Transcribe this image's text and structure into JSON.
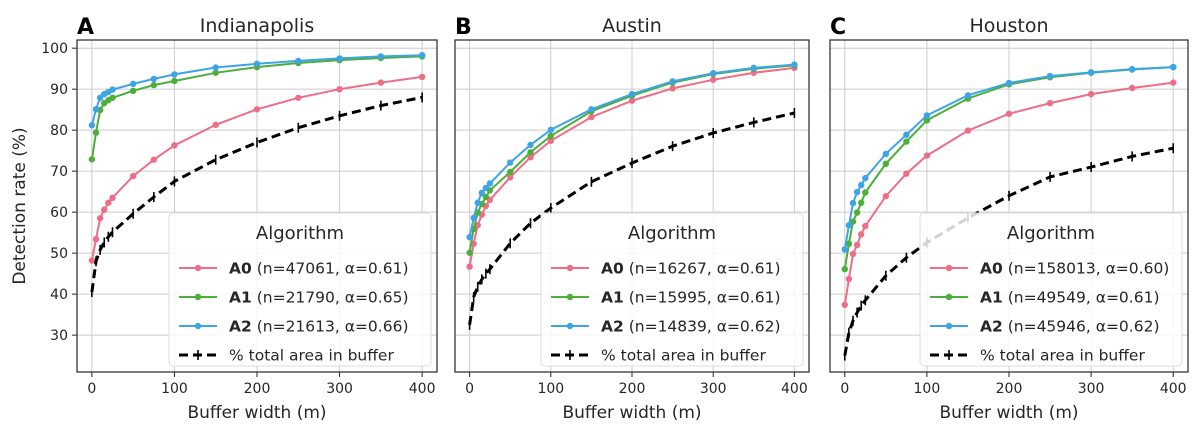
{
  "chart_data": {
    "type": "line",
    "ylabel": "Detection rate (%)",
    "xlabel": "Buffer width (m)",
    "xlim": [
      -18,
      418
    ],
    "ylim": [
      21,
      102
    ],
    "xticks": [
      0,
      100,
      200,
      300,
      400
    ],
    "yticks": [
      30,
      40,
      50,
      60,
      70,
      80,
      90,
      100
    ],
    "grid": true,
    "legend_title": "Algorithm",
    "legend_position": "lower-right",
    "colors": {
      "A0": "#ee6d87",
      "A1": "#4caf3a",
      "A2": "#3da5e6",
      "area": "#000000"
    },
    "x": [
      0,
      5,
      10,
      15,
      20,
      25,
      50,
      75,
      100,
      150,
      200,
      250,
      300,
      350,
      400
    ],
    "panels": [
      {
        "letter": "A",
        "title": "Indianapolis",
        "series": [
          {
            "key": "A0",
            "name": "A0",
            "label_rest": " (n=47061, α=0.61)",
            "values": [
              48.2,
              53.4,
              58.5,
              60.6,
              62.3,
              63.5,
              68.8,
              72.8,
              76.3,
              81.3,
              85.1,
              87.9,
              90.0,
              91.6,
              93.0
            ]
          },
          {
            "key": "A1",
            "name": "A1",
            "label_rest": " (n=21790, α=0.65)",
            "values": [
              72.9,
              79.4,
              84.9,
              86.6,
              87.3,
              87.9,
              89.6,
              91.0,
              92.0,
              94.0,
              95.4,
              96.4,
              97.1,
              97.6,
              98.0
            ]
          },
          {
            "key": "A2",
            "name": "A2",
            "label_rest": " (n=21613, α=0.66)",
            "values": [
              81.2,
              85.1,
              87.9,
              88.8,
              89.3,
              89.9,
              91.3,
              92.5,
              93.6,
              95.3,
              96.2,
              96.9,
              97.5,
              98.0,
              98.3
            ]
          },
          {
            "key": "area",
            "name": "% total area in buffer",
            "label_rest": "",
            "values": [
              40.5,
              48.0,
              50.8,
              52.6,
              54.0,
              55.1,
              59.6,
              63.7,
              67.5,
              72.8,
              77.0,
              80.6,
              83.5,
              86.0,
              88.0
            ]
          }
        ]
      },
      {
        "letter": "B",
        "title": "Austin",
        "series": [
          {
            "key": "A0",
            "name": "A0",
            "label_rest": " (n=16267, α=0.61)",
            "values": [
              46.7,
              52.3,
              56.8,
              59.4,
              61.5,
              63.0,
              68.5,
              73.4,
              77.4,
              83.2,
              87.2,
              90.2,
              92.3,
              94.0,
              95.2
            ]
          },
          {
            "key": "A1",
            "name": "A1",
            "label_rest": " (n=15995, α=0.61)",
            "values": [
              50.1,
              55.9,
              59.9,
              62.0,
              63.7,
              65.3,
              69.8,
              74.6,
              78.6,
              84.6,
              88.4,
              91.6,
              93.7,
              95.0,
              95.8
            ]
          },
          {
            "key": "A2",
            "name": "A2",
            "label_rest": " (n=14839, α=0.62)",
            "values": [
              53.9,
              58.6,
              62.3,
              64.7,
              65.9,
              67.0,
              72.1,
              76.4,
              80.1,
              85.1,
              88.8,
              91.9,
              93.9,
              95.2,
              96.0
            ]
          },
          {
            "key": "area",
            "name": "% total area in buffer",
            "label_rest": "",
            "values": [
              32.5,
              39.3,
              41.8,
              43.6,
              45.0,
              46.1,
              52.4,
              57.3,
              61.0,
              67.4,
              72.0,
              76.1,
              79.3,
              81.9,
              84.2
            ]
          }
        ]
      },
      {
        "letter": "C",
        "title": "Houston",
        "series": [
          {
            "key": "A0",
            "name": "A0",
            "label_rest": " (n=158013, α=0.60)",
            "values": [
              37.4,
              43.7,
              49.8,
              52.0,
              54.6,
              56.6,
              63.9,
              69.4,
              73.8,
              79.9,
              84.0,
              86.6,
              88.8,
              90.3,
              91.6
            ]
          },
          {
            "key": "A1",
            "name": "A1",
            "label_rest": " (n=49549, α=0.61)",
            "values": [
              46.1,
              52.3,
              57.7,
              59.9,
              62.3,
              64.8,
              71.8,
              77.2,
              82.4,
              87.7,
              91.2,
              92.9,
              94.0,
              94.8,
              95.4
            ]
          },
          {
            "key": "A2",
            "name": "A2",
            "label_rest": " (n=45946, α=0.62)",
            "values": [
              50.9,
              56.8,
              62.2,
              64.9,
              66.6,
              68.3,
              74.2,
              78.9,
              83.6,
              88.5,
              91.5,
              93.2,
              94.1,
              94.9,
              95.4
            ]
          },
          {
            "key": "area",
            "name": "% total area in buffer",
            "label_rest": "",
            "values": [
              25.0,
              30.6,
              33.5,
              35.5,
              37.2,
              38.5,
              44.5,
              48.9,
              52.6,
              58.6,
              64.0,
              68.6,
              71.0,
              73.6,
              75.6
            ]
          }
        ]
      }
    ]
  }
}
